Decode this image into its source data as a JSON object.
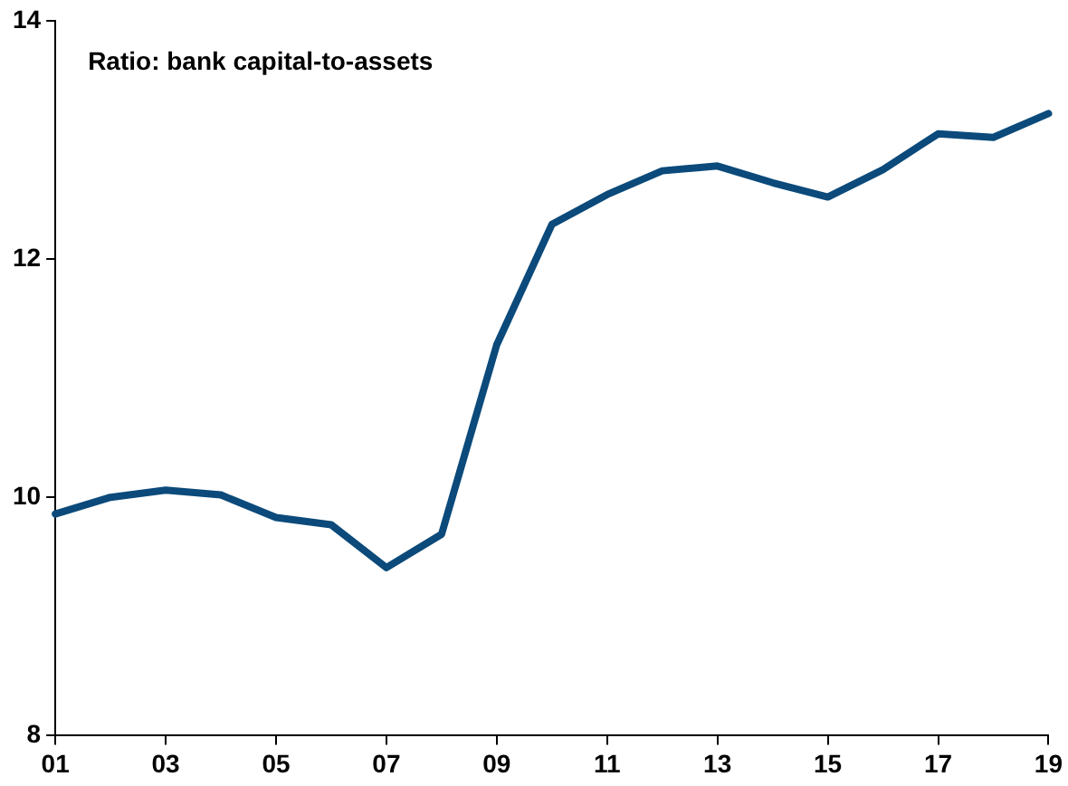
{
  "chart_data": {
    "type": "line",
    "title": "Ratio: bank capital-to-assets",
    "x": [
      2001,
      2002,
      2003,
      2004,
      2005,
      2006,
      2007,
      2008,
      2009,
      2010,
      2011,
      2012,
      2013,
      2014,
      2015,
      2016,
      2017,
      2018,
      2019
    ],
    "series": [
      {
        "color": "#0b4a7a",
        "values": [
          9.86,
          10.0,
          10.06,
          10.02,
          9.83,
          9.77,
          9.41,
          9.69,
          11.28,
          12.29,
          12.54,
          12.74,
          12.78,
          12.64,
          12.52,
          12.75,
          13.05,
          13.02,
          13.22
        ]
      }
    ],
    "xlim": [
      2001,
      2019
    ],
    "xticks": [
      {
        "value": 2001,
        "label": "01"
      },
      {
        "value": 2003,
        "label": "03"
      },
      {
        "value": 2005,
        "label": "05"
      },
      {
        "value": 2007,
        "label": "07"
      },
      {
        "value": 2009,
        "label": "09"
      },
      {
        "value": 2011,
        "label": "11"
      },
      {
        "value": 2013,
        "label": "13"
      },
      {
        "value": 2015,
        "label": "15"
      },
      {
        "value": 2017,
        "label": "17"
      },
      {
        "value": 2019,
        "label": "19"
      }
    ],
    "ylim": [
      8,
      14
    ],
    "yticks": [
      8,
      10,
      12,
      14
    ],
    "grid": false,
    "legend": false,
    "marker": "none",
    "line_style": "solid"
  }
}
